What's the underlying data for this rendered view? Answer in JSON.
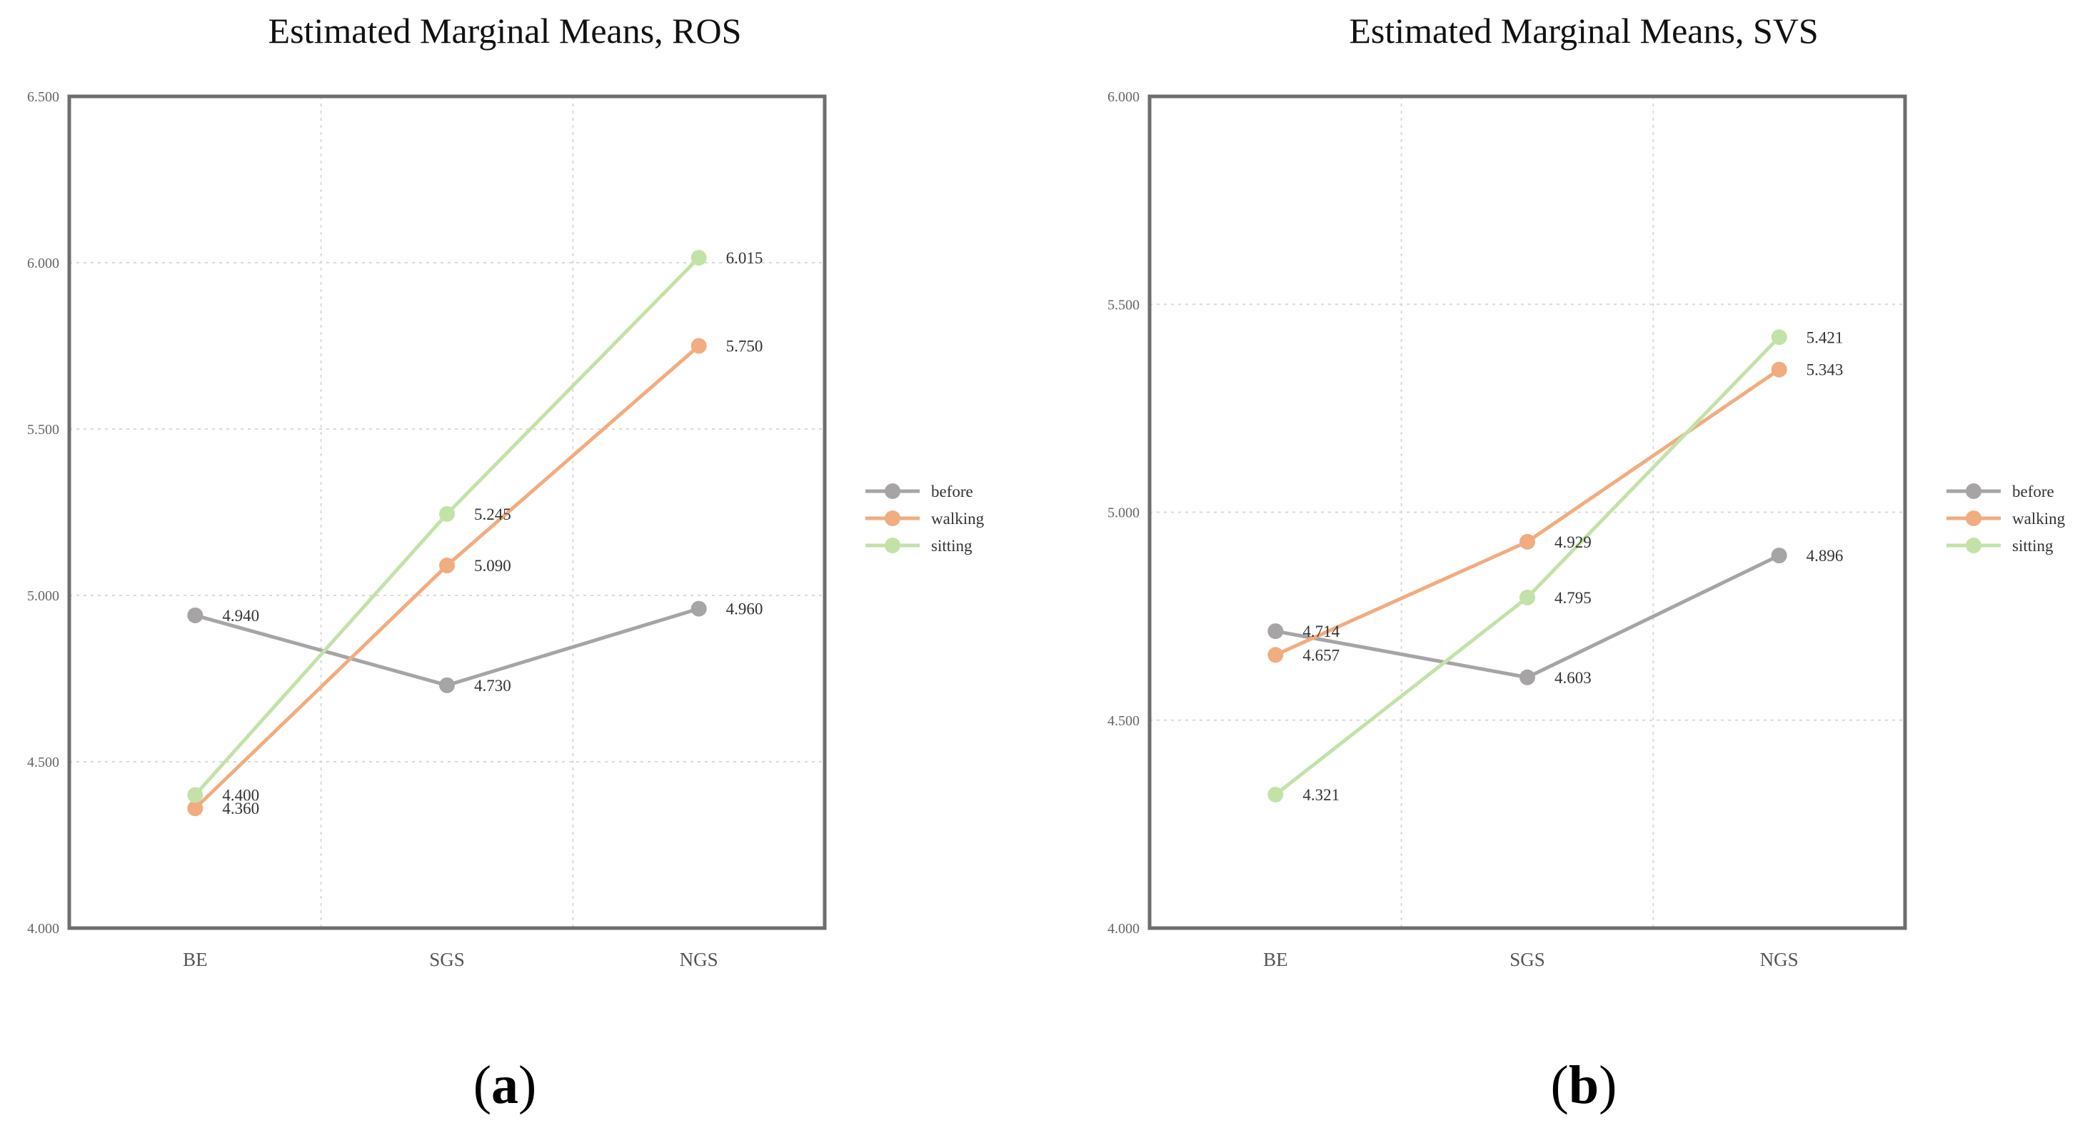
{
  "chart_data": [
    {
      "type": "line",
      "title": "Estimated Marginal Means, ROS",
      "panel_label": "a",
      "categories": [
        "BE",
        "SGS",
        "NGS"
      ],
      "ylim": [
        4.0,
        6.5
      ],
      "yticks": [
        "4.000",
        "4.500",
        "5.000",
        "5.500",
        "6.000",
        "6.500"
      ],
      "legend_position": "right",
      "series": [
        {
          "name": "before",
          "color": "#a7a4a5",
          "values": [
            4.94,
            4.73,
            4.96
          ],
          "labels": [
            "4.940",
            "4.730",
            "4.960"
          ]
        },
        {
          "name": "walking",
          "color": "#f1ac7f",
          "values": [
            4.36,
            5.09,
            5.75
          ],
          "labels": [
            "4.360",
            "5.090",
            "5.750"
          ]
        },
        {
          "name": "sitting",
          "color": "#c3e2a8",
          "values": [
            4.4,
            5.245,
            6.015
          ],
          "labels": [
            "4.400",
            "5.245",
            "6.015"
          ]
        }
      ]
    },
    {
      "type": "line",
      "title": "Estimated Marginal Means, SVS",
      "panel_label": "b",
      "categories": [
        "BE",
        "SGS",
        "NGS"
      ],
      "ylim": [
        4.0,
        6.0
      ],
      "yticks": [
        "4.000",
        "4.500",
        "5.000",
        "5.500",
        "6.000"
      ],
      "legend_position": "right",
      "series": [
        {
          "name": "before",
          "color": "#a7a4a5",
          "values": [
            4.714,
            4.603,
            4.896
          ],
          "labels": [
            "4.714",
            "4.603",
            "4.896"
          ]
        },
        {
          "name": "walking",
          "color": "#f1ac7f",
          "values": [
            4.657,
            4.929,
            5.343
          ],
          "labels": [
            "4.657",
            "4.929",
            "5.343"
          ]
        },
        {
          "name": "sitting",
          "color": "#c3e2a8",
          "values": [
            4.321,
            4.795,
            5.421
          ],
          "labels": [
            "4.321",
            "4.795",
            "5.421"
          ]
        }
      ]
    }
  ]
}
